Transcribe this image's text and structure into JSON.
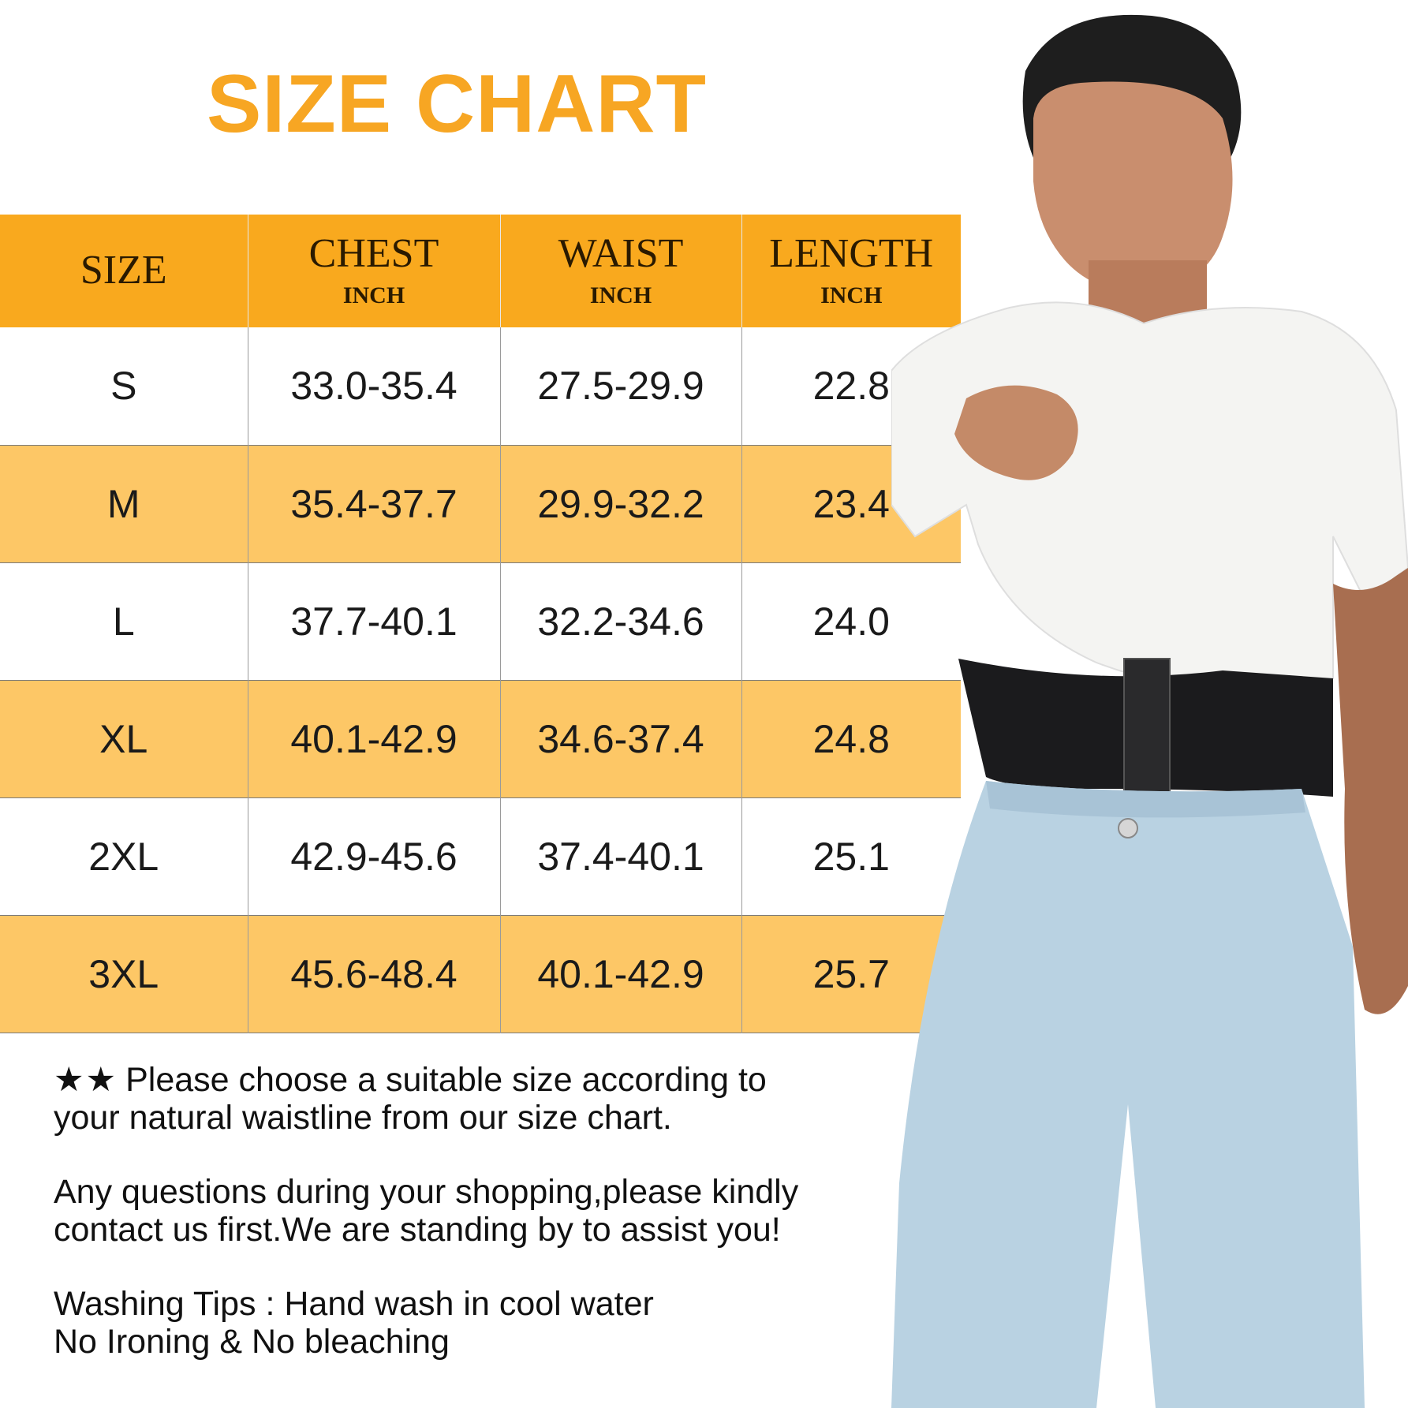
{
  "title": "SIZE CHART",
  "colors": {
    "accent": "#f9a91e",
    "title": "#f7a623",
    "row_highlight": "#fdc766"
  },
  "table": {
    "headers": [
      {
        "label": "SIZE",
        "unit": ""
      },
      {
        "label": "CHEST",
        "unit": "INCH"
      },
      {
        "label": "WAIST",
        "unit": "INCH"
      },
      {
        "label": "LENGTH",
        "unit": "INCH"
      }
    ],
    "rows": [
      {
        "size": "S",
        "chest": "33.0-35.4",
        "waist": "27.5-29.9",
        "length": "22.8"
      },
      {
        "size": "M",
        "chest": "35.4-37.7",
        "waist": "29.9-32.2",
        "length": "23.4"
      },
      {
        "size": "L",
        "chest": "37.7-40.1",
        "waist": "32.2-34.6",
        "length": "24.0"
      },
      {
        "size": "XL",
        "chest": "40.1-42.9",
        "waist": "34.6-37.4",
        "length": "24.8"
      },
      {
        "size": "2XL",
        "chest": "42.9-45.6",
        "waist": "37.4-40.1",
        "length": "25.1"
      },
      {
        "size": "3XL",
        "chest": "45.6-48.4",
        "waist": "40.1-42.9",
        "length": "25.7"
      }
    ]
  },
  "notes": {
    "stars": "★★",
    "note1_line1": "Please choose a suitable size according to",
    "note1_line2": "your natural waistline from our size chart.",
    "note2_line1": "Any questions during your shopping,please kindly",
    "note2_line2": "contact us first.We are standing by to assist you!",
    "note3_line1": "Washing Tips : Hand wash in cool water",
    "note3_line2": "No Ironing & No bleaching"
  }
}
